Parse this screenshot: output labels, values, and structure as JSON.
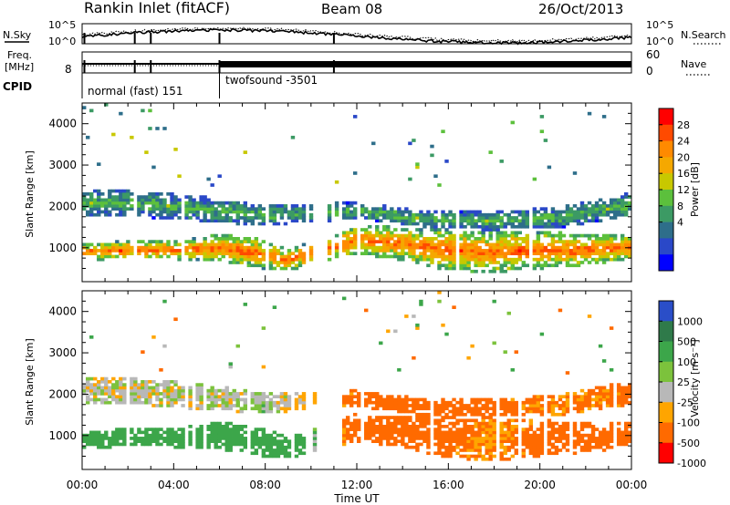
{
  "header": {
    "station": "Rankin Inlet (fitACF)",
    "beam": "Beam 08",
    "date": "26/Oct/2013"
  },
  "strips": {
    "nsky_label": "N.Sky",
    "nsearch_label": "N.Search",
    "freq_label_line1": "Freq.",
    "freq_label_line2": "[MHz]",
    "nave_label": "Nave",
    "cpid_label": "CPID",
    "noise_ticks": [
      "10^5",
      "10^0"
    ],
    "freq_ticks": [
      "8"
    ],
    "nave_ticks": [
      "60",
      "0"
    ],
    "cpid_segments": [
      {
        "label": "normal (fast) 151",
        "start_hour": 0.0,
        "end_hour": 6.0
      },
      {
        "label": "twofsound -3501",
        "start_hour": 6.0,
        "end_hour": 24.0
      }
    ],
    "gap_hours": [
      0.1,
      2.3,
      3.0,
      6.0,
      11.0
    ]
  },
  "power_scale": {
    "title": "Power [dB]",
    "ticks": [
      "28",
      "24",
      "20",
      "16",
      "12",
      "8",
      "4"
    ],
    "colors": [
      "#ff0000",
      "#ff4a00",
      "#ff8a00",
      "#f5a800",
      "#c8c800",
      "#5cc03c",
      "#3c9a64",
      "#2e6e8a",
      "#2a48c8",
      "#0000ff"
    ]
  },
  "velocity_scale": {
    "title": "Velocity [m s⁻¹]",
    "ticks": [
      "1000",
      "500",
      "100",
      "25",
      "-25",
      "-100",
      "-500",
      "-1000"
    ],
    "colors": [
      "#2a4ec8",
      "#2f7a4a",
      "#3ca64a",
      "#7cc23c",
      "#b8b8b8",
      "#ffa500",
      "#ff6a00",
      "#ff0000"
    ]
  },
  "chart_data": [
    {
      "type": "heatmap",
      "panel": "power",
      "ylabel": "Slant Range [km]",
      "ylim": [
        180,
        4500
      ],
      "y_ticks": [
        1000,
        2000,
        3000,
        4000
      ],
      "xlim": [
        0,
        24
      ],
      "x_tick_labels": [
        "00:00",
        "04:00",
        "08:00",
        "12:00",
        "16:00",
        "20:00",
        "00:00"
      ],
      "colorbar": "Power [dB]",
      "colorbar_range": [
        0,
        30
      ],
      "bands": [
        {
          "name": "main band",
          "hours": [
            0.0,
            2.0,
            4.0,
            6.0,
            7.5,
            9.0,
            12.0,
            14.0,
            16.0,
            18.0,
            20.0,
            22.0,
            24.0
          ],
          "center_km": [
            900,
            950,
            950,
            1000,
            900,
            700,
            1200,
            1100,
            950,
            900,
            950,
            950,
            1050
          ],
          "half_width_km": [
            200,
            220,
            230,
            320,
            380,
            250,
            350,
            400,
            500,
            500,
            450,
            380,
            300
          ],
          "power_db": 26
        },
        {
          "name": "upper band",
          "hours": [
            0.0,
            3.0,
            6.0,
            8.0,
            12.0,
            15.0,
            18.0,
            21.0,
            24.0
          ],
          "center_km": [
            2100,
            2050,
            1900,
            1800,
            1900,
            1700,
            1650,
            1750,
            2050
          ],
          "half_width_km": [
            300,
            320,
            300,
            250,
            200,
            220,
            220,
            250,
            300
          ],
          "power_db": 14
        }
      ],
      "empty_interval_hours": [
        9.7,
        11.4
      ]
    },
    {
      "type": "heatmap",
      "panel": "velocity",
      "ylabel": "Slant Range [km]",
      "ylim": [
        180,
        4500
      ],
      "y_ticks": [
        1000,
        2000,
        3000,
        4000
      ],
      "xlim": [
        0,
        24
      ],
      "x_tick_labels": [
        "00:00",
        "04:00",
        "08:00",
        "12:00",
        "16:00",
        "20:00",
        "00:00"
      ],
      "xlabel": "Time UT",
      "colorbar": "Velocity [m s⁻¹]",
      "colorbar_range": [
        -1000,
        1000
      ],
      "bands": [
        {
          "name": "main band",
          "hours": [
            0.0,
            2.0,
            4.0,
            6.0,
            7.5,
            9.0,
            12.0,
            14.0,
            16.0,
            18.0,
            20.0,
            22.0,
            24.0
          ],
          "center_km": [
            900,
            950,
            950,
            1000,
            900,
            700,
            1200,
            1100,
            950,
            900,
            950,
            950,
            1050
          ],
          "half_width_km": [
            200,
            220,
            230,
            320,
            380,
            250,
            350,
            400,
            500,
            500,
            450,
            380,
            300
          ],
          "velocity_ms": [
            150,
            150,
            150,
            150,
            200,
            200,
            -200,
            -300,
            -150,
            -100,
            -150,
            -200,
            -300
          ]
        },
        {
          "name": "upper band",
          "hours": [
            0.0,
            3.0,
            6.0,
            8.0,
            12.0,
            15.0,
            18.0,
            21.0,
            24.0
          ],
          "center_km": [
            2100,
            2050,
            1900,
            1800,
            1900,
            1700,
            1650,
            1750,
            2050
          ],
          "half_width_km": [
            300,
            320,
            300,
            250,
            200,
            220,
            220,
            250,
            300
          ],
          "velocity_ms": [
            0,
            0,
            10,
            20,
            -150,
            -200,
            -150,
            -100,
            -150
          ]
        }
      ],
      "empty_interval_hours": [
        9.7,
        11.4
      ]
    }
  ]
}
